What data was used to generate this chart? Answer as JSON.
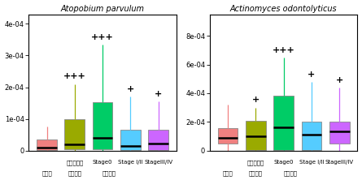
{
  "title1": "Atopobium parvulum",
  "title2": "Actinomyces odontolyticus",
  "colors": [
    "#f08080",
    "#9aaa00",
    "#00cc66",
    "#55ccff",
    "#cc66ff"
  ],
  "plot1": {
    "ylim": [
      0,
      0.00043
    ],
    "yticks": [
      0,
      0.0001,
      0.0002,
      0.0003,
      0.0004
    ],
    "yticklabels": [
      "0",
      "1e-04",
      "2e-04",
      "3e-04",
      "4e-04"
    ],
    "boxes": [
      {
        "q1": 2e-06,
        "median": 1e-05,
        "q3": 3.5e-05,
        "whislo": 0.0,
        "whishi": 7.5e-05,
        "label": ""
      },
      {
        "q1": 3e-06,
        "median": 2e-05,
        "q3": 0.0001,
        "whislo": 0.0,
        "whishi": 0.00021,
        "label": "+++"
      },
      {
        "q1": 3e-06,
        "median": 4e-05,
        "q3": 0.000152,
        "whislo": 0.0,
        "whishi": 0.000335,
        "label": "+++"
      },
      {
        "q1": 2e-06,
        "median": 1.5e-05,
        "q3": 6.5e-05,
        "whislo": 0.0,
        "whishi": 0.00017,
        "label": "+"
      },
      {
        "q1": 2e-06,
        "median": 2.2e-05,
        "q3": 6.5e-05,
        "whislo": 0.0,
        "whishi": 0.000155,
        "label": "+"
      }
    ]
  },
  "plot2": {
    "ylim": [
      0,
      0.00095
    ],
    "yticks": [
      0,
      0.0002,
      0.0004,
      0.0006,
      0.0008
    ],
    "yticklabels": [
      "0",
      "2e-04",
      "4e-04",
      "6e-04",
      "8e-04"
    ],
    "boxes": [
      {
        "q1": 5e-05,
        "median": 9e-05,
        "q3": 0.000155,
        "whislo": 0.0,
        "whishi": 0.00032,
        "label": ""
      },
      {
        "q1": 5e-06,
        "median": 0.0001,
        "q3": 0.00021,
        "whislo": 0.0,
        "whishi": 0.0003,
        "label": "+"
      },
      {
        "q1": 5e-06,
        "median": 0.00016,
        "q3": 0.00038,
        "whislo": 0.0,
        "whishi": 0.00065,
        "label": "+++"
      },
      {
        "q1": 2e-06,
        "median": 0.00011,
        "q3": 0.0002,
        "whislo": 0.0,
        "whishi": 0.00048,
        "label": "+"
      },
      {
        "q1": 5e-05,
        "median": 0.000135,
        "q3": 0.0002,
        "whislo": 0.0,
        "whishi": 0.00044,
        "label": "+"
      }
    ]
  },
  "bg_color": "#ffffff"
}
